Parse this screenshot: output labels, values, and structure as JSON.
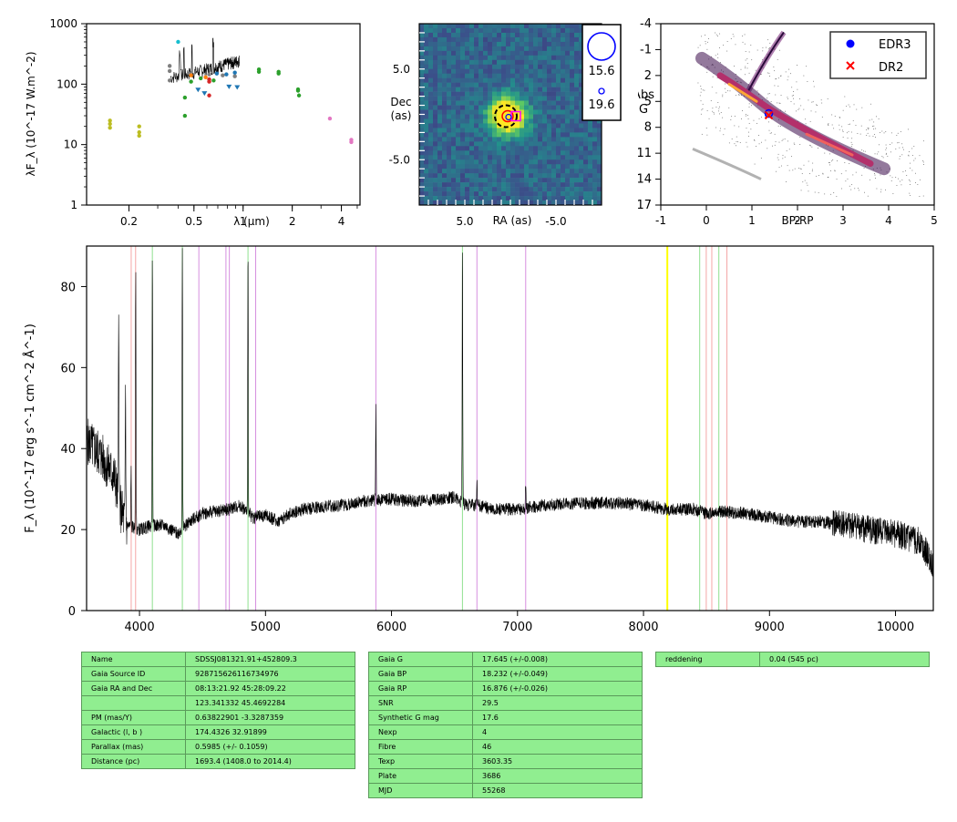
{
  "colors": {
    "sed_yellow": "#bcbd22",
    "sed_cyan": "#17becf",
    "sed_gray": "#7f7f7f",
    "sed_green": "#2ca02c",
    "sed_blue": "#1f77b4",
    "sed_orange": "#ff7f0e",
    "sed_red": "#d62728",
    "sed_pink": "#e377c2",
    "line_red": "#f4a6a6",
    "line_green": "#8fe08f",
    "line_purple": "#d68fe0",
    "line_yellow": "#ffff00",
    "table_bg": "#90ee90"
  },
  "chart_data": [
    {
      "id": "sed",
      "type": "scatter",
      "xlabel": "λ (μm)",
      "ylabel": "λF_λ (10^-17 W.m^-2)",
      "xscale": "log",
      "yscale": "log",
      "xlim": [
        0.11,
        5.2
      ],
      "ylim": [
        1,
        1000
      ],
      "xticks": [
        "0.2",
        "0.5",
        "1",
        "2",
        "4"
      ],
      "yticks": [
        "1",
        "10",
        "100",
        "1000"
      ],
      "series": [
        {
          "color": "yellow",
          "marker": "dot",
          "points": [
            [
              0.153,
              25
            ],
            [
              0.153,
              22
            ],
            [
              0.153,
              19
            ],
            [
              0.231,
              20
            ],
            [
              0.231,
              16
            ],
            [
              0.231,
              14
            ]
          ]
        },
        {
          "color": "cyan",
          "marker": "dot",
          "points": [
            [
              0.4,
              500
            ]
          ]
        },
        {
          "color": "gray",
          "marker": "dot",
          "points": [
            [
              0.355,
              200
            ],
            [
              0.355,
              165
            ],
            [
              0.355,
              115
            ],
            [
              0.47,
              150
            ],
            [
              0.62,
              145
            ],
            [
              0.75,
              140
            ],
            [
              0.89,
              135
            ]
          ]
        },
        {
          "color": "green",
          "marker": "dot",
          "points": [
            [
              0.44,
              30
            ],
            [
              0.44,
              60
            ],
            [
              0.48,
              110
            ],
            [
              0.55,
              125
            ],
            [
              0.66,
              115
            ],
            [
              1.25,
              175
            ],
            [
              1.25,
              160
            ],
            [
              1.65,
              160
            ],
            [
              1.65,
              150
            ],
            [
              2.17,
              82
            ],
            [
              2.17,
              78
            ],
            [
              2.2,
              65
            ]
          ]
        },
        {
          "color": "orange",
          "marker": "dot",
          "points": [
            [
              0.48,
              140
            ],
            [
              0.59,
              130
            ]
          ]
        },
        {
          "color": "red",
          "marker": "dot",
          "points": [
            [
              0.62,
              120
            ],
            [
              0.62,
              110
            ],
            [
              0.62,
              65
            ]
          ]
        },
        {
          "color": "blue",
          "marker": "dot",
          "points": [
            [
              0.69,
              150
            ],
            [
              0.79,
              145
            ],
            [
              0.89,
              155
            ]
          ]
        },
        {
          "color": "blue",
          "marker": "triangle",
          "points": [
            [
              0.53,
              80
            ],
            [
              0.58,
              70
            ],
            [
              0.82,
              90
            ],
            [
              0.92,
              88
            ]
          ]
        },
        {
          "color": "pink",
          "marker": "dot",
          "points": [
            [
              3.4,
              27
            ],
            [
              4.6,
              12
            ],
            [
              4.6,
              11
            ]
          ]
        }
      ]
    },
    {
      "id": "image",
      "type": "heatmap",
      "xlabel": "RA (as)",
      "ylabel": "Dec (as)",
      "xlim": [
        10,
        -10
      ],
      "ylim": [
        -10,
        10
      ],
      "xticks": [
        "5.0",
        "-5.0"
      ],
      "yticks": [
        "5.0",
        "-5.0"
      ],
      "source_offset": [
        0.3,
        -0.2
      ],
      "legend": [
        {
          "label": "15.6",
          "size": "large"
        },
        {
          "label": "19.6",
          "size": "small"
        }
      ]
    },
    {
      "id": "hrd",
      "type": "scatter",
      "xlabel": "BP-RP",
      "ylabel": "Abs G",
      "xlim": [
        -1,
        5
      ],
      "ylim": [
        17,
        -4
      ],
      "xticks": [
        "-1",
        "0",
        "1",
        "2",
        "3",
        "4",
        "5"
      ],
      "yticks": [
        "-4",
        "-1",
        "2",
        "5",
        "8",
        "11",
        "14",
        "17"
      ],
      "legend_position": "top-right",
      "series": [
        {
          "name": "EDR3",
          "marker": "circle",
          "color": "#0000ff",
          "points": [
            [
              1.37,
              6.4
            ]
          ]
        },
        {
          "name": "DR2",
          "marker": "cross",
          "color": "#ff0000",
          "points": [
            [
              1.37,
              6.6
            ]
          ]
        }
      ]
    },
    {
      "id": "spectrum",
      "type": "line",
      "xlabel": "",
      "ylabel": "F_λ (10^-17 erg s^-1 cm^-2 Å^-1)",
      "xlim": [
        3580,
        10300
      ],
      "ylim": [
        0,
        90
      ],
      "xticks": [
        "4000",
        "5000",
        "6000",
        "7000",
        "8000",
        "9000",
        "10000"
      ],
      "yticks": [
        "0",
        "20",
        "40",
        "60",
        "80"
      ],
      "continuum": [
        [
          3580,
          42
        ],
        [
          3700,
          38
        ],
        [
          3800,
          33
        ],
        [
          3850,
          25
        ],
        [
          3900,
          21
        ],
        [
          4000,
          20
        ],
        [
          4100,
          21
        ],
        [
          4200,
          21
        ],
        [
          4300,
          19
        ],
        [
          4400,
          22
        ],
        [
          4500,
          24
        ],
        [
          4600,
          24.5
        ],
        [
          4700,
          25
        ],
        [
          4800,
          26
        ],
        [
          4900,
          23
        ],
        [
          5000,
          23.5
        ],
        [
          5100,
          22
        ],
        [
          5200,
          24
        ],
        [
          5300,
          25
        ],
        [
          5400,
          25.5
        ],
        [
          5600,
          26
        ],
        [
          5800,
          27
        ],
        [
          6000,
          27.5
        ],
        [
          6200,
          27
        ],
        [
          6400,
          27.5
        ],
        [
          6500,
          28
        ],
        [
          6600,
          26
        ],
        [
          6700,
          26
        ],
        [
          6800,
          25
        ],
        [
          7000,
          25
        ],
        [
          7200,
          26
        ],
        [
          7500,
          26.5
        ],
        [
          7800,
          26.5
        ],
        [
          8000,
          26
        ],
        [
          8200,
          25
        ],
        [
          8400,
          25
        ],
        [
          8500,
          24
        ],
        [
          8600,
          24.5
        ],
        [
          8800,
          24
        ],
        [
          9000,
          23
        ],
        [
          9200,
          22
        ],
        [
          9400,
          22
        ],
        [
          9600,
          21
        ],
        [
          9800,
          20
        ],
        [
          10000,
          19
        ],
        [
          10200,
          17
        ],
        [
          10300,
          11
        ]
      ],
      "emission_lines": [
        [
          3835,
          75
        ],
        [
          3889,
          55
        ],
        [
          3933,
          35
        ],
        [
          3970,
          83
        ],
        [
          4102,
          89
        ],
        [
          4340,
          90
        ],
        [
          4861,
          90
        ],
        [
          5876,
          50
        ],
        [
          6563,
          90
        ],
        [
          6678,
          32
        ],
        [
          7065,
          31
        ]
      ],
      "reference_lines": [
        {
          "color": "red",
          "x": [
            3934,
            3969,
            8498,
            8542,
            8662
          ]
        },
        {
          "color": "green",
          "x": [
            4102,
            4340,
            4861,
            6563,
            8446,
            8598
          ]
        },
        {
          "color": "purple",
          "x": [
            4471,
            4686,
            4713,
            4922,
            5876,
            6678,
            7065
          ]
        },
        {
          "color": "yellow",
          "x": [
            8189
          ]
        }
      ]
    }
  ],
  "tables": {
    "gaia": [
      [
        "Name",
        "SDSSJ081321.91+452809.3"
      ],
      [
        "Gaia Source ID",
        "928715626116734976"
      ],
      [
        "Gaia RA and Dec",
        "08:13:21.92    45:28:09.22"
      ],
      [
        "",
        "123.341332    45.4692284"
      ],
      [
        "PM (mas/Y)",
        "0.63822901    -3.3287359"
      ],
      [
        "Galactic (l, b )",
        "174.4326    32.91899"
      ],
      [
        "Parallax (mas)",
        "0.5985 (+/- 0.1059)"
      ],
      [
        "Distance (pc)",
        "1693.4 (1408.0 to 2014.4)"
      ]
    ],
    "phot": [
      [
        "Gaia G",
        "17.645 (+/-0.008)"
      ],
      [
        "Gaia BP",
        "18.232 (+/-0.049)"
      ],
      [
        "Gaia RP",
        "16.876 (+/-0.026)"
      ],
      [
        "SNR",
        "29.5"
      ],
      [
        "Synthetic G mag",
        "17.6"
      ],
      [
        "Nexp",
        "4"
      ],
      [
        "Fibre",
        "46"
      ],
      [
        "Texp",
        "3603.35"
      ],
      [
        "Plate",
        "3686"
      ],
      [
        "MJD",
        "55268"
      ]
    ],
    "extra": [
      [
        "reddening",
        "0.04 (545 pc)"
      ]
    ]
  }
}
